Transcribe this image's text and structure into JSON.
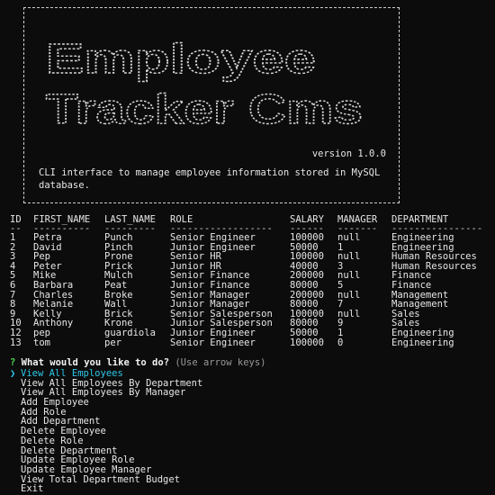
{
  "banner": {
    "title_line1": "Employee",
    "title_line2": "Tracker Cms",
    "version": "version 1.0.0",
    "description": "CLI interface to manage employee information stored in MySQL database."
  },
  "table": {
    "headers": [
      "ID",
      "FIRST_NAME",
      "LAST_NAME",
      "ROLE",
      "SALARY",
      "MANAGER",
      "DEPARTMENT"
    ],
    "separators": [
      "--",
      "----------",
      "---------",
      "------------------",
      "------",
      "-------",
      "----------------"
    ],
    "rows": [
      [
        "1",
        "Petra",
        "Punch",
        "Senior Engineer",
        "100000",
        "null",
        "Engineering"
      ],
      [
        "2",
        "David",
        "Pinch",
        "Junior Engineer",
        "50000",
        "1",
        "Engineering"
      ],
      [
        "3",
        "Pep",
        "Prone",
        "Senior HR",
        "100000",
        "null",
        "Human Resources"
      ],
      [
        "4",
        "Peter",
        "Prick",
        "Junior HR",
        "40000",
        "3",
        "Human Resources"
      ],
      [
        "5",
        "Mike",
        "Mulch",
        "Senior Finance",
        "200000",
        "null",
        "Finance"
      ],
      [
        "6",
        "Barbara",
        "Peat",
        "Junior Finance",
        "80000",
        "5",
        "Finance"
      ],
      [
        "7",
        "Charles",
        "Broke",
        "Senior Manager",
        "200000",
        "null",
        "Management"
      ],
      [
        "8",
        "Melanie",
        "Wall",
        "Junior Manager",
        "80000",
        "7",
        "Management"
      ],
      [
        "9",
        "Kelly",
        "Brick",
        "Senior Salesperson",
        "100000",
        "null",
        "Sales"
      ],
      [
        "10",
        "Anthony",
        "Krone",
        "Junior Salesperson",
        "80000",
        "9",
        "Sales"
      ],
      [
        "12",
        "pep",
        "guardiola",
        "Junior Engineer",
        "50000",
        "1",
        "Engineering"
      ],
      [
        "13",
        "tom",
        "per",
        "Senior Engineer",
        "100000",
        "0",
        "Engineering"
      ]
    ]
  },
  "prompt": {
    "mark": "?",
    "question": "What would you like to do?",
    "hint": "(Use arrow keys)",
    "pointer": "❯"
  },
  "menu": {
    "selected_index": 0,
    "items": [
      "View All Employees",
      "View All Employees By Department",
      "View All Employees By Manager",
      "Add Employee",
      "Add Role",
      "Add Department",
      "Delete Employee",
      "Delete Role",
      "Delete Department",
      "Update Employee Role",
      "Update Employee Manager",
      "View Total Department Budget",
      "Exit"
    ]
  },
  "colors": {
    "background": "#0c0c0c",
    "text": "#e6e6e6",
    "prompt_mark": "#4fd24f",
    "selected": "#2ec7e8",
    "hint": "#9a9a9a"
  }
}
